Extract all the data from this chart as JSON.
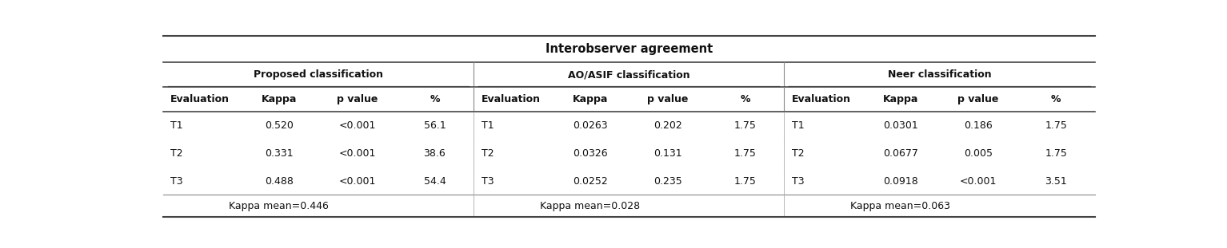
{
  "title": "Interobserver agreement",
  "group_headers": [
    "Proposed classification",
    "AO/ASIF classification",
    "Neer classification"
  ],
  "col_headers": [
    "Evaluation",
    "Kappa",
    "p value",
    "%"
  ],
  "rows": [
    [
      "T1",
      "0.520",
      "<0.001",
      "56.1",
      "T1",
      "0.0263",
      "0.202",
      "1.75",
      "T1",
      "0.0301",
      "0.186",
      "1.75"
    ],
    [
      "T2",
      "0.331",
      "<0.001",
      "38.6",
      "T2",
      "0.0326",
      "0.131",
      "1.75",
      "T2",
      "0.0677",
      "0.005",
      "1.75"
    ],
    [
      "T3",
      "0.488",
      "<0.001",
      "54.4",
      "T3",
      "0.0252",
      "0.235",
      "1.75",
      "T3",
      "0.0918",
      "<0.001",
      "3.51"
    ]
  ],
  "kappa_means": [
    "Kappa mean=0.446",
    "Kappa mean=0.028",
    "Kappa mean=0.063"
  ],
  "font_size": 9.0,
  "title_font_size": 10.5
}
